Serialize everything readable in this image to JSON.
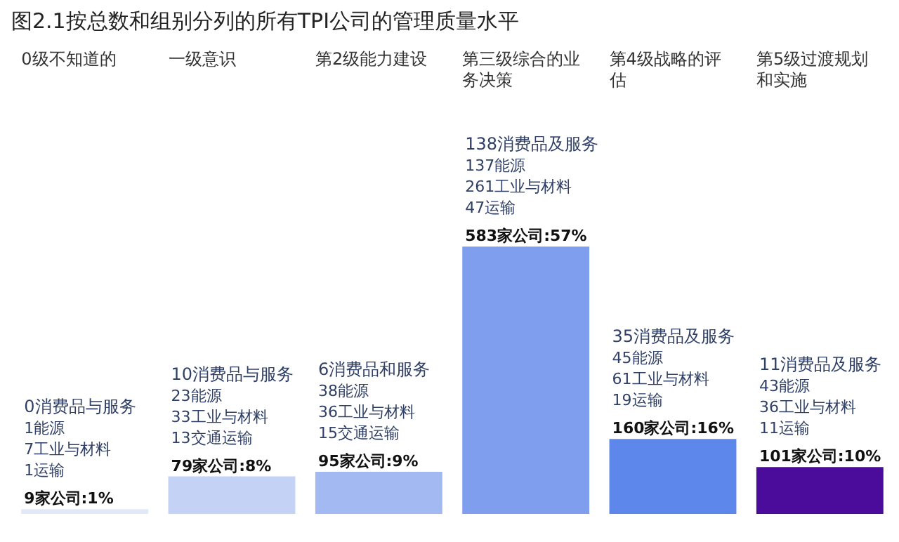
{
  "chart_data": {
    "type": "bar",
    "title": "图2.1按总数和组别分列的所有TPI公司的管理质量水平",
    "categories": [
      "0级不知道的",
      "一级意识",
      "第2级能力建设",
      "第三级综合的业务决策",
      "第4级战略的评估",
      "第5级过渡规划和实施"
    ],
    "values": [
      1,
      8,
      9,
      57,
      16,
      10
    ],
    "colors": [
      "#e1e8f8",
      "#c3d2f5",
      "#a3b9f1",
      "#7f9eee",
      "#5d87ea",
      "#4b0c9b"
    ],
    "value_labels": [
      "9家公司:1%",
      "79家公司:8%",
      "95家公司:9%",
      "583家公司:57%",
      "160家公司:16%",
      "101家公司:10%"
    ],
    "annotations": [
      "0消费品与服务",
      "1能源",
      "7工业与材料",
      "1运输",
      "10消费品与服务",
      "23能源",
      "33工业与材料",
      "13交通运输",
      "6消费品和服务",
      "38能源",
      "36工业与材料",
      "15交通运输",
      "138消费品及服务",
      "137能源",
      "261工业与材料",
      "47运输",
      "35消费品及服务",
      "45能源",
      "61工业与材料",
      "19运输",
      "11消费品及服务",
      "43能源",
      "36工业与材料",
      "11运输"
    ],
    "legend": false
  }
}
